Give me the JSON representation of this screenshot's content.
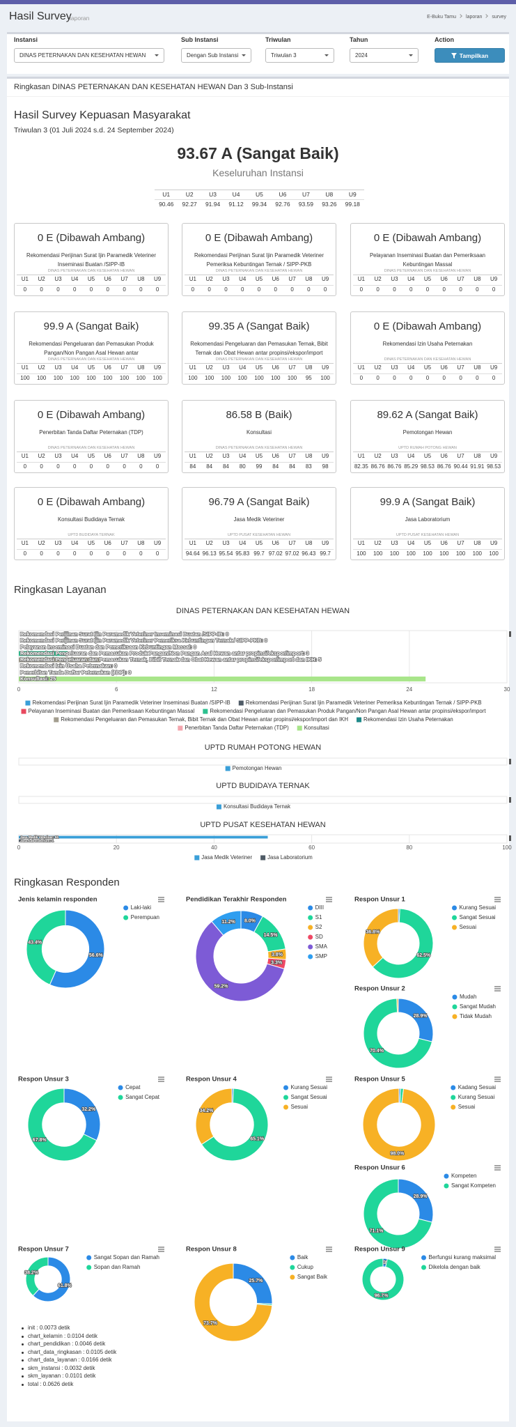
{
  "header": {
    "title": "Hasil Survey",
    "subtitle": "laporan",
    "breadcrumb": [
      "E-Buku Tamu",
      "laporan",
      "survey"
    ]
  },
  "filters": [
    {
      "label": "Instansi",
      "value": "DINAS PETERNAKAN DAN KESEHATAN HEWAN"
    },
    {
      "label": "Sub Instansi",
      "value": "Dengan Sub Instansi"
    },
    {
      "label": "Triwulan",
      "value": "Triwulan 3"
    },
    {
      "label": "Tahun",
      "value": "2024"
    }
  ],
  "action": {
    "label": "Action",
    "button": "Tampilkan"
  },
  "summary": {
    "title": "Ringkasan DINAS PETERNAKAN DAN KESEHATAN HEWAN Dan 3 Sub-Instansi",
    "heading": "Hasil Survey Kepuasan Masyarakat",
    "period": "Triwulan 3 (01 Juli 2024 s.d. 24 September 2024)",
    "score": "93.67 A (Sangat Baik)",
    "scope": "Keseluruhan Instansi",
    "values": [
      90.46,
      92.27,
      91.94,
      91.12,
      99.34,
      92.76,
      93.59,
      93.26,
      99.18
    ]
  },
  "units": [
    "U1",
    "U2",
    "U3",
    "U4",
    "U5",
    "U6",
    "U7",
    "U8",
    "U9"
  ],
  "cards": [
    {
      "score": "0 E (Dibawah Ambang)",
      "service": "Rekomendasi Perijinan Surat Ijin Paramedik Veteriner Inseminasi Buatan /SIPP-IB",
      "unit": "DINAS PETERNAKAN DAN KESEHATAN HEWAN",
      "values": [
        0,
        0,
        0,
        0,
        0,
        0,
        0,
        0,
        0
      ]
    },
    {
      "score": "0 E (Dibawah Ambang)",
      "service": "Rekomendasi Perijinan Surat Ijin Paramedik Veteriner Pemeriksa Kebuntingan Ternak / SIPP-PKB",
      "unit": "DINAS PETERNAKAN DAN KESEHATAN HEWAN",
      "values": [
        0,
        0,
        0,
        0,
        0,
        0,
        0,
        0,
        0
      ]
    },
    {
      "score": "0 E (Dibawah Ambang)",
      "service": "Pelayanan Inseminasi Buatan dan Pemeriksaan Kebuntingan Massal",
      "unit": "DINAS PETERNAKAN DAN KESEHATAN HEWAN",
      "values": [
        0,
        0,
        0,
        0,
        0,
        0,
        0,
        0,
        0
      ]
    },
    {
      "score": "99.9 A (Sangat Baik)",
      "service": "Rekomendasi Pengeluaran dan Pemasukan Produk Pangan/Non Pangan Asal Hewan antar",
      "unit": "DINAS PETERNAKAN DAN KESEHATAN HEWAN",
      "values": [
        100,
        100,
        100,
        100,
        100,
        100,
        100,
        100,
        100
      ]
    },
    {
      "score": "99.35 A (Sangat Baik)",
      "service": "Rekomendasi Pengeluaran dan Pemasukan Ternak, Bibit Ternak dan Obat Hewan antar propinsi/ekspor/import",
      "unit": "DINAS PETERNAKAN DAN KESEHATAN HEWAN",
      "values": [
        100,
        100,
        100,
        100,
        100,
        100,
        100,
        95,
        100
      ]
    },
    {
      "score": "0 E (Dibawah Ambang)",
      "service": "Rekomendasi Izin Usaha Peternakan",
      "unit": "DINAS PETERNAKAN DAN KESEHATAN HEWAN",
      "values": [
        0,
        0,
        0,
        0,
        0,
        0,
        0,
        0,
        0
      ]
    },
    {
      "score": "0 E (Dibawah Ambang)",
      "service": "Penerbitan Tanda Daftar Peternakan (TDP)",
      "unit": "DINAS PETERNAKAN DAN KESEHATAN HEWAN",
      "values": [
        0,
        0,
        0,
        0,
        0,
        0,
        0,
        0,
        0
      ]
    },
    {
      "score": "86.58 B (Baik)",
      "service": "Konsultasi",
      "unit": "DINAS PETERNAKAN DAN KESEHATAN HEWAN",
      "values": [
        84,
        84,
        84,
        80,
        99,
        84,
        84,
        83,
        98
      ]
    },
    {
      "score": "89.62 A (Sangat Baik)",
      "service": "Pemotongan Hewan",
      "unit": "UPTD RUMAH POTONG HEWAN",
      "values": [
        82.35,
        86.76,
        86.76,
        85.29,
        98.53,
        86.76,
        90.44,
        91.91,
        98.53
      ]
    },
    {
      "score": "0 E (Dibawah Ambang)",
      "service": "Konsultasi Budidaya Ternak",
      "unit": "UPTD BUDIDAYA TERNAK",
      "values": [
        0,
        0,
        0,
        0,
        0,
        0,
        0,
        0,
        0
      ]
    },
    {
      "score": "96.79 A (Sangat Baik)",
      "service": "Jasa Medik Veteriner",
      "unit": "UPTD PUSAT KESEHATAN HEWAN",
      "values": [
        94.64,
        96.13,
        95.54,
        95.83,
        99.7,
        97.02,
        97.02,
        96.43,
        99.7
      ]
    },
    {
      "score": "99.9 A (Sangat Baik)",
      "service": "Jasa Laboratorium",
      "unit": "UPTD PUSAT KESEHATAN HEWAN",
      "values": [
        100,
        100,
        100,
        100,
        100,
        100,
        100,
        100,
        100
      ]
    }
  ],
  "layanan_title": "Ringkasan Layanan",
  "responden_title": "Ringkasan Responden",
  "chart_data": [
    {
      "type": "bar",
      "title": "DINAS PETERNAKAN DAN KESEHATAN HEWAN",
      "xlim": [
        0,
        30
      ],
      "xticks": [
        0,
        6,
        12,
        18,
        24,
        30
      ],
      "grid": true,
      "legend": "bottom",
      "series": [
        {
          "name": "Rekomendasi Perijinan Surat Ijin Paramedik Veteriner Inseminasi Buatan /SIPP-IB",
          "color": "#3a9fd8",
          "values": [
            0
          ],
          "value_labels": [
            "Rekomendasi Perijinan Surat Ijin Paramedik Veteriner Inseminasi Buatan /SIPP-IB: 0"
          ]
        },
        {
          "name": "Rekomendasi Perijinan Surat Ijin Paramedik Veteriner Pemeriksa Kebuntingan Ternak / SIPP-PKB",
          "color": "#4f5b66",
          "values": [
            0
          ],
          "value_labels": [
            "Rekomendasi Perijinan Surat Ijin Paramedik Veteriner Pemeriksa Kebuntingan Ternak / SIPP-PKB: 0"
          ]
        },
        {
          "name": "Pelayanan Inseminasi Buatan dan Pemeriksaan Kebuntingan Massal",
          "color": "#e84a5f",
          "values": [
            0
          ],
          "value_labels": [
            "Pelayanan Inseminasi Buatan dan Pemeriksaan Kebuntingan Massal: 0"
          ]
        },
        {
          "name": "Rekomendasi Pengeluaran dan Pemasukan Produk Pangan/Non Pangan Asal Hewan antar propinsi/ekspor/import",
          "color": "#2bc08f",
          "values": [
            3
          ],
          "value_labels": [
            "Rekomendasi Pengeluaran dan Pemasukan Produk Pangan/Non Pangan Asal Hewan antar propinsi/ekspor/import: 3"
          ]
        },
        {
          "name": "Rekomendasi Pengeluaran dan Pemasukan Ternak, Bibit Ternak dan Obat Hewan antar propinsi/ekspor/import dan IKH",
          "color": "#a39e8f",
          "values": [
            5
          ],
          "value_labels": [
            "Rekomendasi Pengeluaran dan Pemasukan Ternak, Bibit Ternak dan Obat Hewan antar propinsi/ekspor/import dan IKH: 5"
          ]
        },
        {
          "name": "Rekomendasi Izin Usaha Peternakan",
          "color": "#1f8a8a",
          "values": [
            0
          ],
          "value_labels": [
            "Rekomendasi Izin Usaha Peternakan: 0"
          ]
        },
        {
          "name": "Penerbitan Tanda Daftar Peternakan (TDP)",
          "color": "#f4a5ae",
          "values": [
            0
          ],
          "value_labels": [
            "Penerbitan Tanda Daftar Peternakan (TDP): 0"
          ]
        },
        {
          "name": "Konsultasi",
          "color": "#a8e58a",
          "values": [
            25
          ],
          "value_labels": [
            "Konsultasi: 25"
          ]
        }
      ]
    },
    {
      "type": "bar",
      "title": "UPTD RUMAH POTONG HEWAN",
      "legend": "bottom",
      "series": [
        {
          "name": "Pemotongan Hewan",
          "color": "#3a9fd8"
        }
      ]
    },
    {
      "type": "bar",
      "title": "UPTD BUDIDAYA TERNAK",
      "legend": "bottom",
      "series": [
        {
          "name": "Konsultasi Budidaya Ternak",
          "color": "#3a9fd8"
        }
      ]
    },
    {
      "type": "bar",
      "title": "UPTD PUSAT KESEHATAN HEWAN",
      "xlim": [
        0,
        100
      ],
      "xticks": [
        0,
        20,
        40,
        60,
        80,
        100
      ],
      "grid": true,
      "legend": "bottom",
      "series": [
        {
          "name": "Jasa Medik Veteriner",
          "color": "#3a9fd8",
          "values": [
            51
          ],
          "value_labels": [
            "Jasa Medik Veteriner: 51"
          ]
        },
        {
          "name": "Jasa Laboratorium",
          "color": "#4f5b66",
          "values": [
            1
          ],
          "value_labels": [
            "Jasa Laboratorium: 1"
          ]
        }
      ]
    },
    {
      "type": "pie",
      "title": "Jenis kelamin responden",
      "legend": "right",
      "categories": [
        "Laki-laki",
        "Perempuan"
      ],
      "values": [
        56.6,
        43.4
      ],
      "value_labels": [
        "56.6%",
        "43.4%"
      ],
      "colors": [
        "#2b8ae6",
        "#1fd69a"
      ]
    },
    {
      "type": "pie",
      "title": "Pendidikan Terakhir Responden",
      "legend": "right",
      "categories": [
        "DIII",
        "S1",
        "S2",
        "SD",
        "SMA",
        "SMP"
      ],
      "values": [
        8.0,
        14.5,
        3.8,
        3.3,
        59.2,
        11.2
      ],
      "value_labels": [
        "8.0%",
        "14.5%",
        "3.8%",
        "3.3%",
        "59.2%",
        "11.2%"
      ],
      "colors": [
        "#2b8ae6",
        "#1fd69a",
        "#f7b125",
        "#ef4864",
        "#7d5bd6",
        "#2e9ef0"
      ]
    },
    {
      "type": "pie",
      "title": "Respon Unsur 1",
      "legend": "right",
      "categories": [
        "Kurang Sesuai",
        "Sangat Sesuai",
        "Sesuai"
      ],
      "values": [
        0.7,
        62.5,
        36.8
      ],
      "value_labels": [
        null,
        "62.5%",
        "36.8%"
      ],
      "colors": [
        "#2b8ae6",
        "#1fd69a",
        "#f7b125"
      ]
    },
    {
      "type": "pie",
      "title": "Respon Unsur 2",
      "legend": "right",
      "categories": [
        "Mudah",
        "Sangat Mudah",
        "Tidak Mudah"
      ],
      "values": [
        28.9,
        70.4,
        0.7
      ],
      "value_labels": [
        "28.9%",
        "70.4%",
        null
      ],
      "colors": [
        "#2b8ae6",
        "#1fd69a",
        "#f7b125"
      ]
    },
    {
      "type": "pie",
      "title": "Respon Unsur 3",
      "legend": "right",
      "categories": [
        "Cepat",
        "Sangat Cepat"
      ],
      "values": [
        32.2,
        67.8
      ],
      "value_labels": [
        "32.2%",
        "67.8%"
      ],
      "colors": [
        "#2b8ae6",
        "#1fd69a"
      ]
    },
    {
      "type": "pie",
      "title": "Respon Unsur 4",
      "legend": "right",
      "categories": [
        "Kurang Sesuai",
        "Sangat Sesuai",
        "Sesuai"
      ],
      "values": [
        0.7,
        65.1,
        34.2
      ],
      "value_labels": [
        null,
        "65.1%",
        "34.2%"
      ],
      "colors": [
        "#2b8ae6",
        "#1fd69a",
        "#f7b125"
      ]
    },
    {
      "type": "pie",
      "title": "Respon Unsur 5",
      "legend": "right",
      "categories": [
        "Kadang Sesuai",
        "Kurang Sesuai",
        "Sesuai"
      ],
      "values": [
        0.7,
        1.3,
        98.0
      ],
      "value_labels": [
        null,
        null,
        "98.0%"
      ],
      "colors": [
        "#2b8ae6",
        "#1fd69a",
        "#f7b125"
      ]
    },
    {
      "type": "pie",
      "title": "Respon Unsur 6",
      "legend": "right",
      "categories": [
        "Kompeten",
        "Sangat Kompeten"
      ],
      "values": [
        28.9,
        71.1
      ],
      "value_labels": [
        "28.9%",
        "71.1%"
      ],
      "colors": [
        "#2b8ae6",
        "#1fd69a"
      ]
    },
    {
      "type": "pie",
      "title": "Respon Unsur 7",
      "legend": "right",
      "categories": [
        "Sangat Sopan dan Ramah",
        "Sopan dan Ramah"
      ],
      "values": [
        61.8,
        38.2
      ],
      "value_labels": [
        "61.8%",
        "38.2%"
      ],
      "colors": [
        "#2b8ae6",
        "#1fd69a"
      ]
    },
    {
      "type": "pie",
      "title": "Respon Unsur 8",
      "legend": "right",
      "categories": [
        "Baik",
        "Cukup",
        "Sangat Baik"
      ],
      "values": [
        25.7,
        0.6,
        73.7
      ],
      "value_labels": [
        "25.7%",
        null,
        "73.7%"
      ],
      "colors": [
        "#2b8ae6",
        "#1fd69a",
        "#f7b125"
      ]
    },
    {
      "type": "pie",
      "title": "Respon Unsur 9",
      "legend": "right",
      "categories": [
        "Berfungsi kurang maksimal",
        "Dikelola dengan baik"
      ],
      "values": [
        3.3,
        96.7
      ],
      "value_labels": [
        "3.3%",
        "96.7%"
      ],
      "colors": [
        "#2b8ae6",
        "#1fd69a"
      ]
    }
  ],
  "timings": [
    "init : 0.0073 detik",
    "chart_kelamin : 0.0104 detik",
    "chart_pendidikan : 0.0046 detik",
    "chart_data_ringkasan : 0.0105 detik",
    "chart_data_layanan : 0.0166 detik",
    "skm_instansi : 0.0032 detik",
    "skm_layanan : 0.0101 detik",
    "total : 0.0626 detik"
  ]
}
